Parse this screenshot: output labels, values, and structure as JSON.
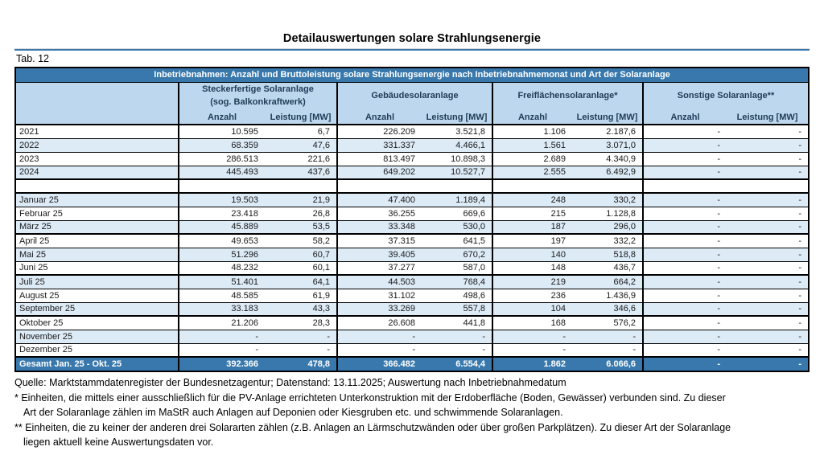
{
  "page": {
    "title": "Detailauswertungen solare Strahlungsenergie",
    "tab_label": "Tab. 12"
  },
  "table": {
    "banner": "Inbetriebnahmen: Anzahl und Bruttoleistung solare Strahlungsenergie nach Inbetriebnahmemonat und Art der Solaranlage",
    "groups": [
      {
        "title": "Steckerfertige Solaranlage",
        "subtitle": "(sog. Balkonkraftwerk)"
      },
      {
        "title": "Gebäudesolaranlage",
        "subtitle": ""
      },
      {
        "title": "Freiflächensolaranlage*",
        "subtitle": ""
      },
      {
        "title": "Sonstige Solaranlage**",
        "subtitle": ""
      }
    ],
    "col_headers": [
      "Anzahl",
      "Leistung [MW]"
    ],
    "rows": [
      {
        "label": "2021",
        "values": [
          "10.595",
          "6,7",
          "226.209",
          "3.521,8",
          "1.106",
          "2.187,6",
          "-",
          "-"
        ]
      },
      {
        "label": "2022",
        "values": [
          "68.359",
          "47,6",
          "331.337",
          "4.466,1",
          "1.561",
          "3.071,0",
          "-",
          "-"
        ]
      },
      {
        "label": "2023",
        "values": [
          "286.513",
          "221,6",
          "813.497",
          "10.898,3",
          "2.689",
          "4.340,9",
          "-",
          "-"
        ]
      },
      {
        "label": "2024",
        "values": [
          "445.493",
          "437,6",
          "649.202",
          "10.527,7",
          "2.555",
          "6.492,9",
          "-",
          "-"
        ]
      },
      {
        "label": "",
        "values": [
          "",
          "",
          "",
          "",
          "",
          "",
          "",
          ""
        ]
      },
      {
        "label": "Januar 25",
        "values": [
          "19.503",
          "21,9",
          "47.400",
          "1.189,4",
          "248",
          "330,2",
          "-",
          "-"
        ]
      },
      {
        "label": "Februar 25",
        "values": [
          "23.418",
          "26,8",
          "36.255",
          "669,6",
          "215",
          "1.128,8",
          "-",
          "-"
        ]
      },
      {
        "label": "März 25",
        "values": [
          "45.889",
          "53,5",
          "33.348",
          "530,0",
          "187",
          "296,0",
          "-",
          "-"
        ]
      },
      {
        "label": "April 25",
        "values": [
          "49.653",
          "58,2",
          "37.315",
          "641,5",
          "197",
          "332,2",
          "-",
          "-"
        ]
      },
      {
        "label": "Mai 25",
        "values": [
          "51.296",
          "60,7",
          "39.405",
          "670,2",
          "140",
          "518,8",
          "-",
          "-"
        ]
      },
      {
        "label": "Juni 25",
        "values": [
          "48.232",
          "60,1",
          "37.277",
          "587,0",
          "148",
          "436,7",
          "-",
          "-"
        ]
      },
      {
        "label": "Juli 25",
        "values": [
          "51.401",
          "64,1",
          "44.503",
          "768,4",
          "219",
          "664,2",
          "-",
          "-"
        ]
      },
      {
        "label": "August 25",
        "values": [
          "48.585",
          "61,9",
          "31.102",
          "498,6",
          "236",
          "1.436,9",
          "-",
          "-"
        ]
      },
      {
        "label": "September 25",
        "values": [
          "33.183",
          "43,3",
          "33.269",
          "557,8",
          "104",
          "346,6",
          "-",
          "-"
        ]
      },
      {
        "label": "Oktober 25",
        "values": [
          "21.206",
          "28,3",
          "26.608",
          "441,8",
          "168",
          "576,2",
          "-",
          "-"
        ]
      },
      {
        "label": "November 25",
        "values": [
          "-",
          "-",
          "-",
          "-",
          "-",
          "-",
          "-",
          "-"
        ]
      },
      {
        "label": "Dezember 25",
        "values": [
          "-",
          "-",
          "-",
          "-",
          "-",
          "-",
          "-",
          "-"
        ]
      }
    ],
    "total": {
      "label": "Gesamt Jan. 25 - Okt. 25",
      "values": [
        "392.366",
        "478,8",
        "366.482",
        "6.554,4",
        "1.862",
        "6.066,6",
        "-",
        "-"
      ]
    }
  },
  "footnotes": [
    "Quelle: Marktstammdatenregister der Bundesnetzagentur; Datenstand: 13.11.2025; Auswertung nach Inbetriebnahmedatum",
    "* Einheiten, die mittels einer ausschließlich für die PV-Anlage errichteten Unterkonstruktion mit der Erdoberfläche (Boden, Gewässer) verbunden sind. Zu dieser",
    "Art der Solaranlage zählen im MaStR auch Anlagen auf Deponien oder Kiesgruben etc. und schwimmende Solaranlagen.",
    "** Einheiten, die zu keiner der anderen drei Solararten zählen (z.B. Anlagen an Lärmschutzwänden oder über großen Parkplätzen). Zu dieser Art der Solaranlage",
    "liegen aktuell keine Auswertungsdaten vor."
  ],
  "colors": {
    "banner_blue": "#3878AC",
    "header_light_blue": "#BDD7EE",
    "row_stripe_blue": "#DDEBF7"
  }
}
